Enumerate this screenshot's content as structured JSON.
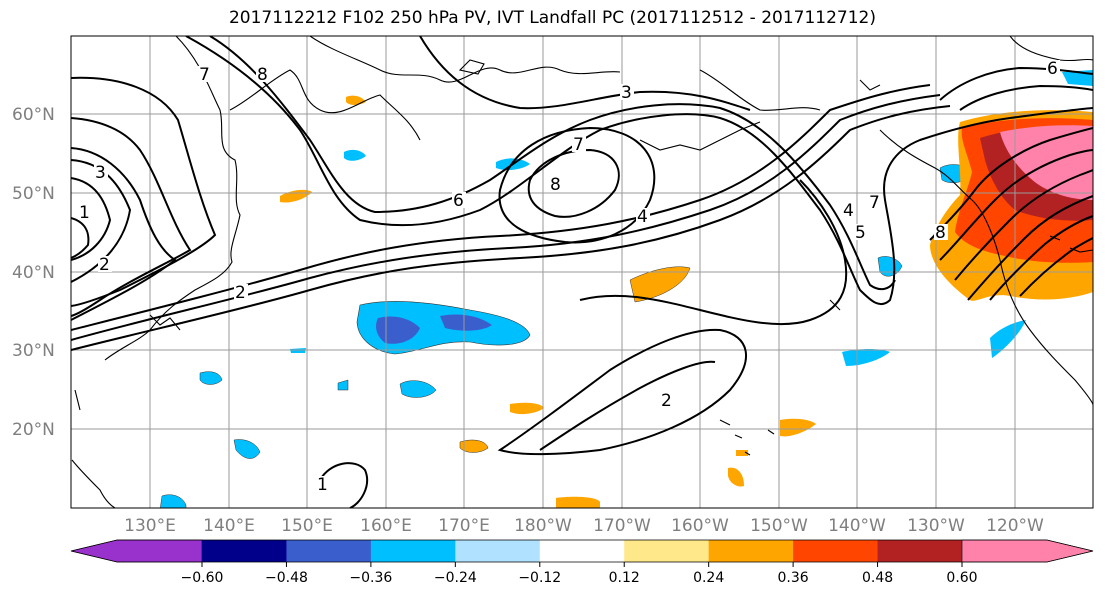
{
  "title": "2017112212 F102 250 hPa PV, IVT Landfall PC (2017112512 - 2017112712)",
  "map": {
    "lat_labels": [
      "60°N",
      "50°N",
      "40°N",
      "30°N",
      "20°N"
    ],
    "lon_labels": [
      "130°E",
      "140°E",
      "150°E",
      "160°E",
      "170°E",
      "180°W",
      "170°W",
      "160°W",
      "150°W",
      "140°W",
      "130°W",
      "120°W"
    ],
    "contour_labels": [
      "7",
      "8",
      "3",
      "2",
      "6",
      "7",
      "8",
      "4",
      "2",
      "2",
      "1",
      "4",
      "5",
      "8",
      "6",
      "7",
      "1",
      "3"
    ],
    "colors": {
      "land_outline": "#000000",
      "grid": "#9a9a9a",
      "contour": "#000000"
    }
  },
  "colorbar": {
    "tick_labels": [
      "-0.60",
      "-0.48",
      "-0.36",
      "-0.24",
      "-0.12",
      "0.12",
      "0.24",
      "0.36",
      "0.48",
      "0.60"
    ],
    "colors": [
      "#9932cc",
      "#00008b",
      "#3a5fcd",
      "#00bfff",
      "#b0e2ff",
      "#ffffff",
      "#ffe88a",
      "#ffa500",
      "#ff4500",
      "#b22222",
      "#ff82ab"
    ]
  }
}
